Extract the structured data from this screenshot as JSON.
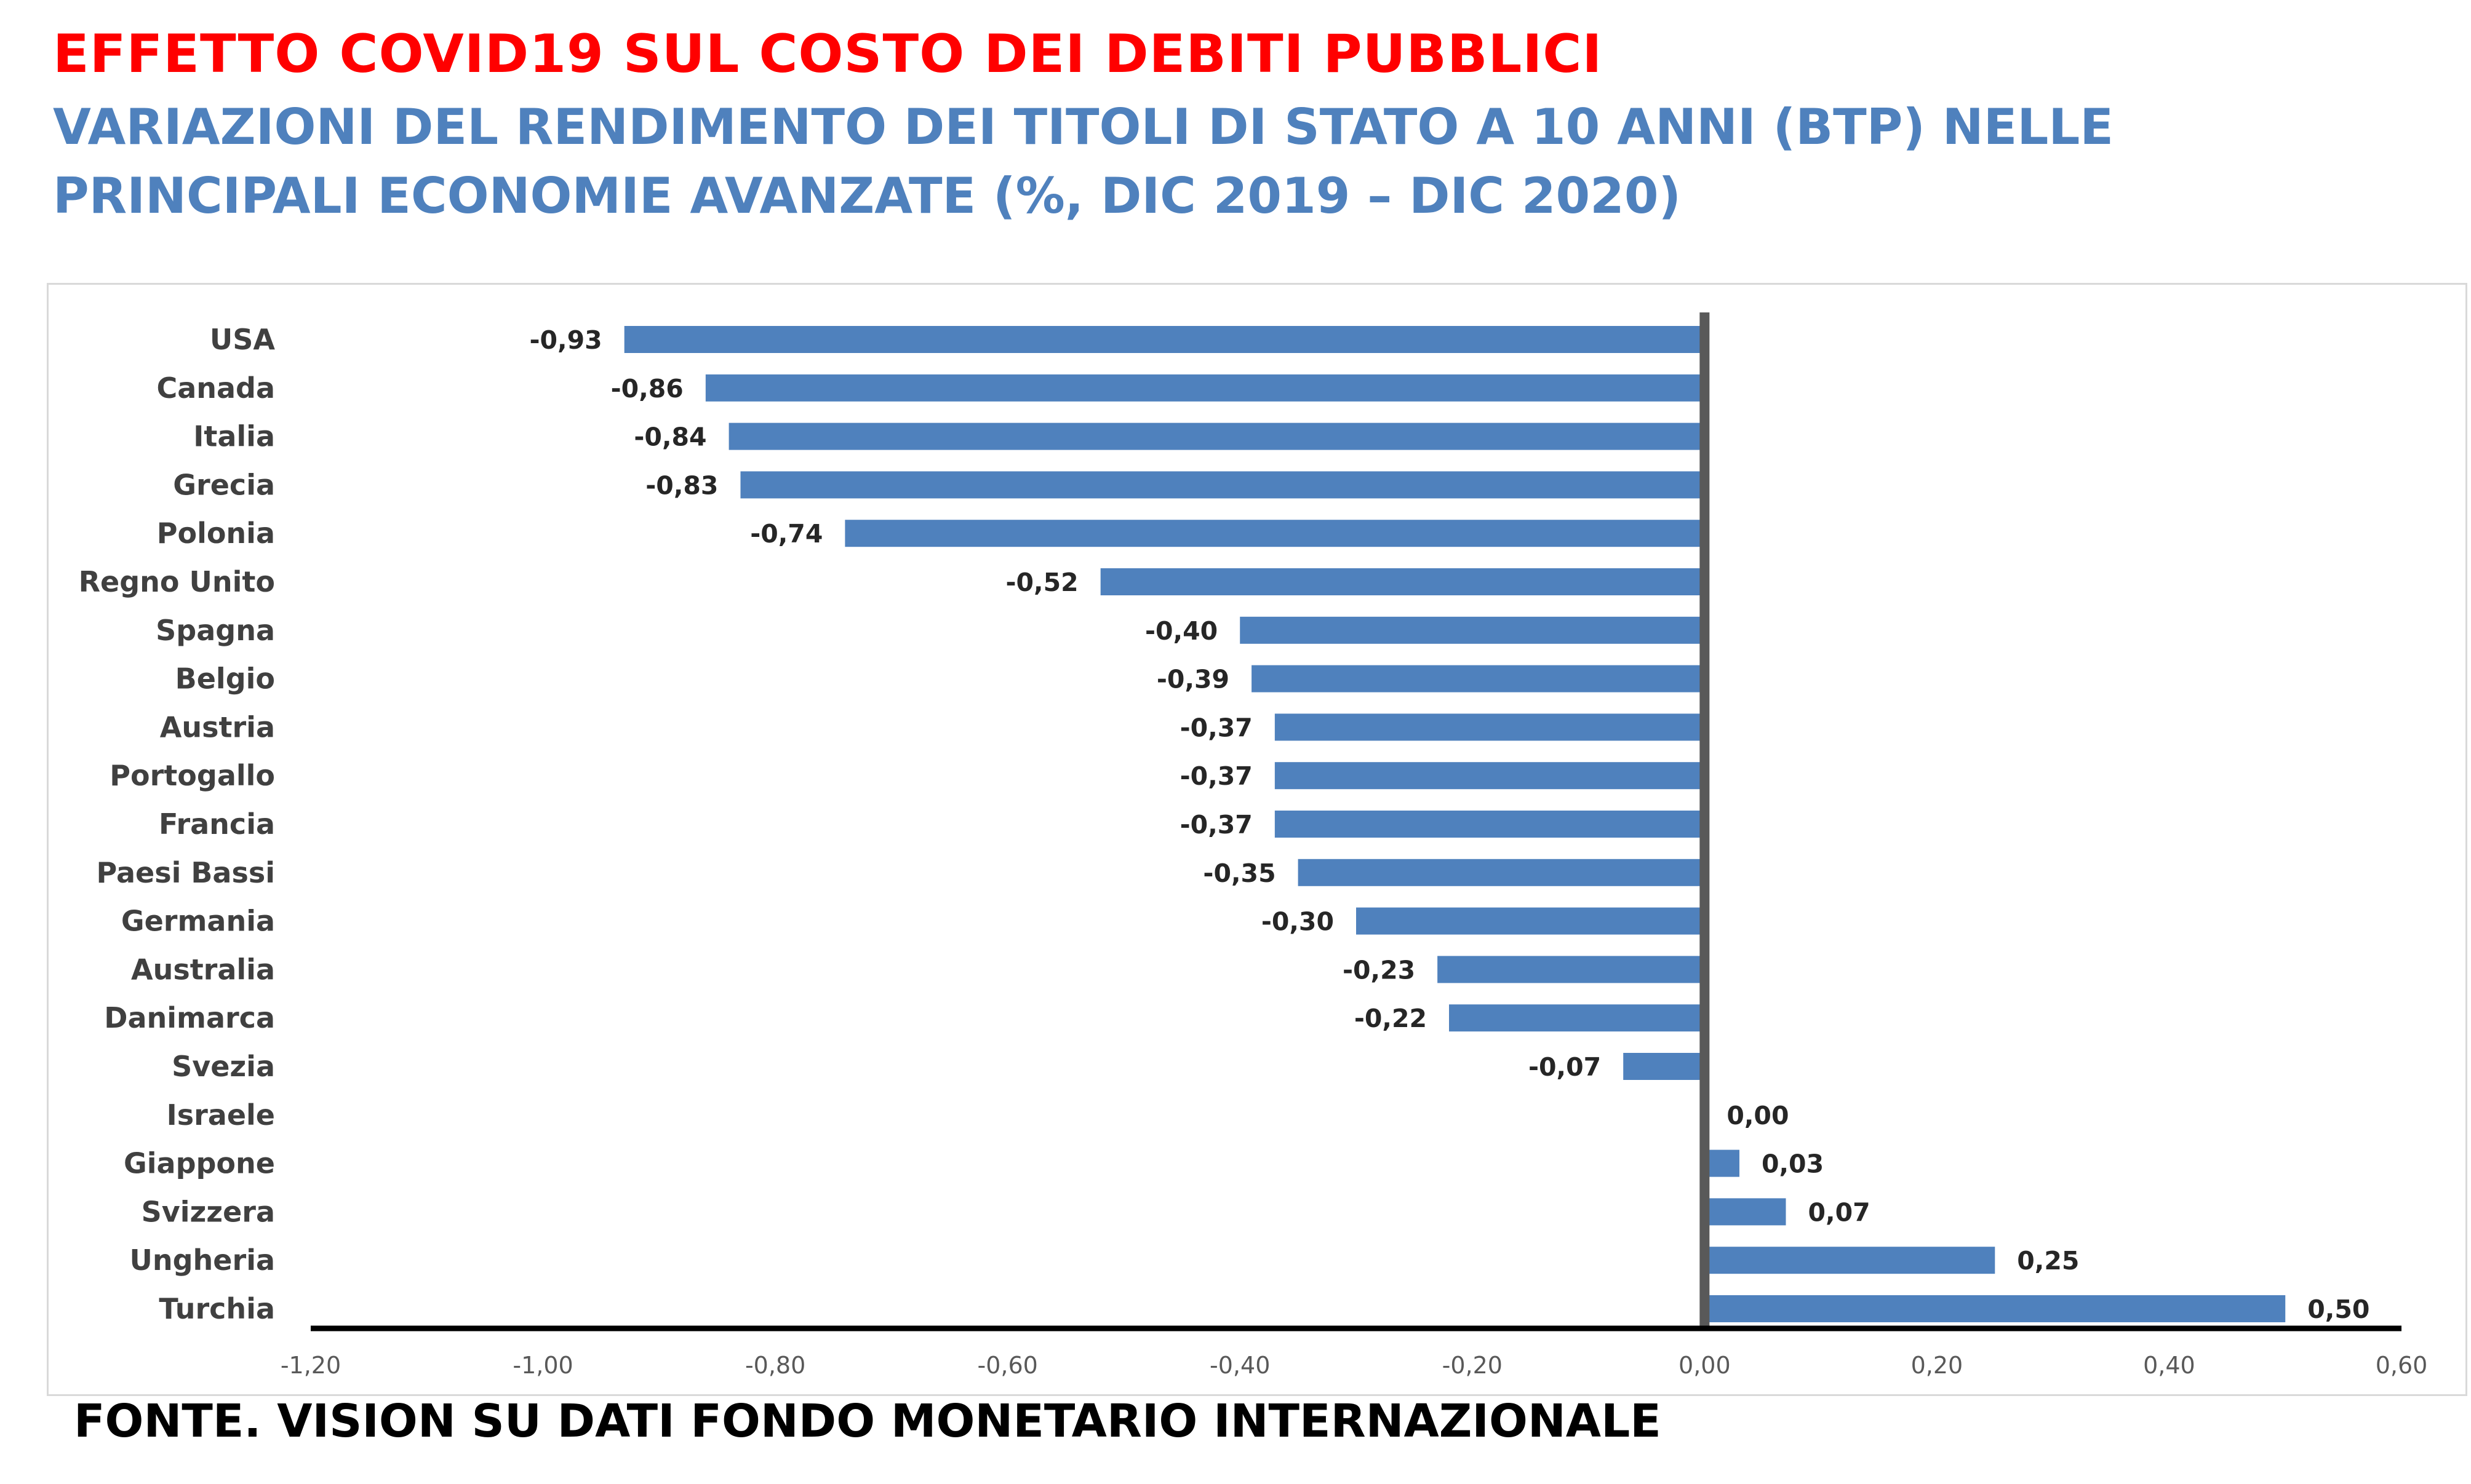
{
  "title": "EFFETTO COVID19 SUL COSTO DEI DEBITI PUBBLICI",
  "subtitle_line1": "VARIAZIONI DEL RENDIMENTO DEI TITOLI DI STATO A 10 ANNI (BTP) NELLE",
  "subtitle_line2": "PRINCIPALI ECONOMIE AVANZATE (%, DIC 2019 – DIC 2020)",
  "source": "FONTE. VISION SU DATI FONDO MONETARIO INTERNAZIONALE",
  "colors": {
    "title": "#ff0000",
    "subtitle": "#4f81bd",
    "bar": "#4f81bd",
    "axis": "#000000",
    "zero_line": "#595959"
  },
  "chart_data": {
    "type": "bar",
    "orientation": "horizontal",
    "categories": [
      "USA",
      "Canada",
      "Italia",
      "Grecia",
      "Polonia",
      "Regno Unito",
      "Spagna",
      "Belgio",
      "Austria",
      "Portogallo",
      "Francia",
      "Paesi Bassi",
      "Germania",
      "Australia",
      "Danimarca",
      "Svezia",
      "Israele",
      "Giappone",
      "Svizzera",
      "Ungheria",
      "Turchia"
    ],
    "values": [
      -0.93,
      -0.86,
      -0.84,
      -0.83,
      -0.74,
      -0.52,
      -0.4,
      -0.39,
      -0.37,
      -0.37,
      -0.37,
      -0.35,
      -0.3,
      -0.23,
      -0.22,
      -0.07,
      0.0,
      0.03,
      0.07,
      0.25,
      0.5
    ],
    "value_labels": [
      "-0,93",
      "-0,86",
      "-0,84",
      "-0,83",
      "-0,74",
      "-0,52",
      "-0,40",
      "-0,39",
      "-0,37",
      "-0,37",
      "-0,37",
      "-0,35",
      "-0,30",
      "-0,23",
      "-0,22",
      "-0,07",
      "0,00",
      "0,03",
      "0,07",
      "0,25",
      "0,50"
    ],
    "xlim": [
      -1.2,
      0.6
    ],
    "xticks": [
      -1.2,
      -1.0,
      -0.8,
      -0.6,
      -0.4,
      -0.2,
      0.0,
      0.2,
      0.4,
      0.6
    ],
    "xtick_labels": [
      "-1,20",
      "-1,00",
      "-0,80",
      "-0,60",
      "-0,40",
      "-0,20",
      "0,00",
      "0,20",
      "0,40",
      "0,60"
    ],
    "xlabel": "",
    "ylabel": "",
    "grid": false,
    "legend": "none"
  }
}
